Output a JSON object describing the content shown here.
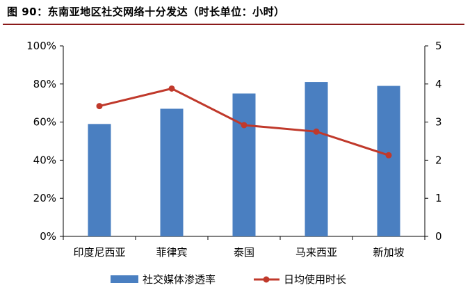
{
  "figure": {
    "title": "图 90：东南亚地区社交网络十分发达（时长单位：小时）"
  },
  "chart_data": {
    "type": "bar",
    "categories": [
      "印度尼西亚",
      "菲律宾",
      "泰国",
      "马来西亚",
      "新加坡"
    ],
    "series": [
      {
        "name": "社交媒体渗透率",
        "type": "bar",
        "axis": "left",
        "values": [
          59,
          67,
          75,
          81,
          79
        ],
        "color": "#4a7fc1"
      },
      {
        "name": "日均使用时长",
        "type": "line",
        "axis": "right",
        "values": [
          3.42,
          3.88,
          2.92,
          2.75,
          2.13
        ],
        "color": "#c0392b"
      }
    ],
    "yleft": {
      "lim": [
        0,
        100
      ],
      "ticks": [
        "0%",
        "20%",
        "40%",
        "60%",
        "80%",
        "100%"
      ]
    },
    "yright": {
      "lim": [
        0,
        5
      ],
      "ticks": [
        "0",
        "1",
        "2",
        "3",
        "4",
        "5"
      ]
    },
    "grid": false,
    "legend": "bottom"
  }
}
